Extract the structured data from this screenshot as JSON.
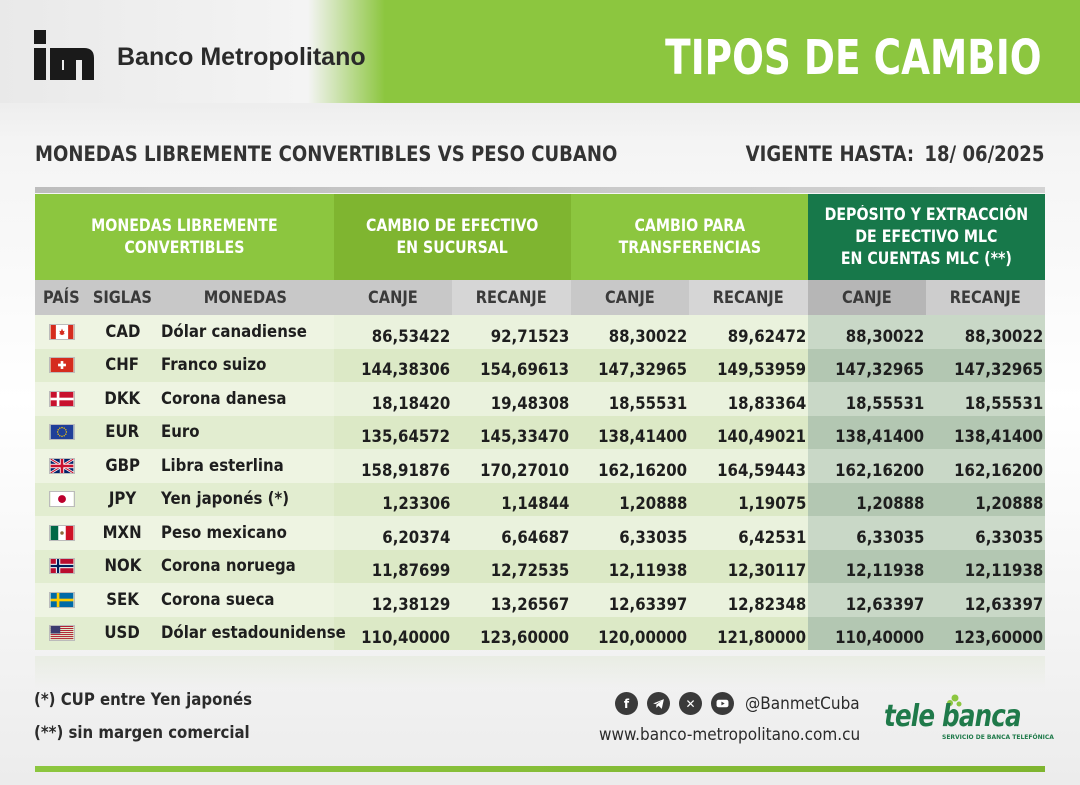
{
  "header": {
    "bank_name": "Banco Metropolitano",
    "title": "TIPOS DE CAMBIO"
  },
  "subtitle": "MONEDAS LIBREMENTE CONVERTIBLES VS PESO CUBANO",
  "valid": {
    "label": "VIGENTE HASTA:",
    "date": "18/ 06/2025"
  },
  "table": {
    "group_headers": {
      "currencies": "MONEDAS LIBREMENTE\nCONVERTIBLES",
      "cash": "CAMBIO DE EFECTIVO\nEN SUCURSAL",
      "transfer": "CAMBIO PARA\nTRANSFERENCIAS",
      "mlc": "DEPÓSITO Y EXTRACCIÓN\nDE EFECTIVO MLC\nEN CUENTAS MLC (**)"
    },
    "sub_headers": {
      "pais": "PAÍS",
      "siglas": "SIGLAS",
      "monedas": "MONEDAS",
      "canje": "CANJE",
      "recanje": "RECANJE"
    },
    "rows": [
      {
        "flag": "canada-flag",
        "code": "CAD",
        "name": "Dólar canadiense",
        "cash_canje": "86,53422",
        "cash_recanje": "92,71523",
        "tr_canje": "88,30022",
        "tr_recanje": "89,62472",
        "mlc_canje": "88,30022",
        "mlc_recanje": "88,30022"
      },
      {
        "flag": "switzerland-flag",
        "code": "CHF",
        "name": "Franco suizo",
        "cash_canje": "144,38306",
        "cash_recanje": "154,69613",
        "tr_canje": "147,32965",
        "tr_recanje": "149,53959",
        "mlc_canje": "147,32965",
        "mlc_recanje": "147,32965"
      },
      {
        "flag": "denmark-flag",
        "code": "DKK",
        "name": "Corona danesa",
        "cash_canje": "18,18420",
        "cash_recanje": "19,48308",
        "tr_canje": "18,55531",
        "tr_recanje": "18,83364",
        "mlc_canje": "18,55531",
        "mlc_recanje": "18,55531"
      },
      {
        "flag": "eu-flag",
        "code": "EUR",
        "name": "Euro",
        "cash_canje": "135,64572",
        "cash_recanje": "145,33470",
        "tr_canje": "138,41400",
        "tr_recanje": "140,49021",
        "mlc_canje": "138,41400",
        "mlc_recanje": "138,41400"
      },
      {
        "flag": "uk-flag",
        "code": "GBP",
        "name": "Libra esterlina",
        "cash_canje": "158,91876",
        "cash_recanje": "170,27010",
        "tr_canje": "162,16200",
        "tr_recanje": "164,59443",
        "mlc_canje": "162,16200",
        "mlc_recanje": "162,16200"
      },
      {
        "flag": "japan-flag",
        "code": "JPY",
        "name": "Yen japonés (*)",
        "cash_canje": "1,23306",
        "cash_recanje": "1,14844",
        "tr_canje": "1,20888",
        "tr_recanje": "1,19075",
        "mlc_canje": "1,20888",
        "mlc_recanje": "1,20888"
      },
      {
        "flag": "mexico-flag",
        "code": "MXN",
        "name": "Peso mexicano",
        "cash_canje": "6,20374",
        "cash_recanje": "6,64687",
        "tr_canje": "6,33035",
        "tr_recanje": "6,42531",
        "mlc_canje": "6,33035",
        "mlc_recanje": "6,33035"
      },
      {
        "flag": "norway-flag",
        "code": "NOK",
        "name": "Corona noruega",
        "cash_canje": "11,87699",
        "cash_recanje": "12,72535",
        "tr_canje": "12,11938",
        "tr_recanje": "12,30117",
        "mlc_canje": "12,11938",
        "mlc_recanje": "12,11938"
      },
      {
        "flag": "sweden-flag",
        "code": "SEK",
        "name": "Corona sueca",
        "cash_canje": "12,38129",
        "cash_recanje": "13,26567",
        "tr_canje": "12,63397",
        "tr_recanje": "12,82348",
        "mlc_canje": "12,63397",
        "mlc_recanje": "12,63397"
      },
      {
        "flag": "usa-flag",
        "code": "USD",
        "name": "Dólar estadounidense",
        "cash_canje": "110,40000",
        "cash_recanje": "123,60000",
        "tr_canje": "120,00000",
        "tr_recanje": "121,80000",
        "mlc_canje": "110,40000",
        "mlc_recanje": "123,60000"
      }
    ]
  },
  "notes": {
    "note1": "(*) CUP entre Yen japonés",
    "note2": "(**) sin margen comercial"
  },
  "footer": {
    "social_icons": [
      "facebook-icon",
      "telegram-icon",
      "x-icon",
      "youtube-icon"
    ],
    "handle": "@BanmetCuba",
    "website": "www.banco-metropolitano.com.cu",
    "telebanca": "tele banca",
    "telebanca_tagline": "SERVICIO DE BANCA TELEFÓNICA"
  },
  "colors": {
    "brand_green": "#8cc63f",
    "dark_green": "#17784a",
    "text": "#2b2b2b"
  }
}
